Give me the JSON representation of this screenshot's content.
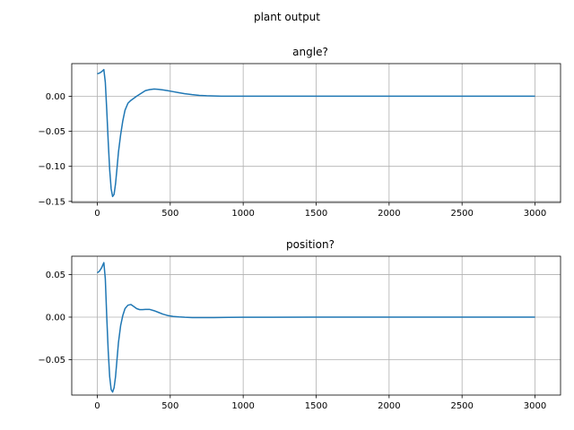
{
  "figure": {
    "suptitle": "plant output"
  },
  "chart_data": [
    {
      "type": "line",
      "title": "angle?",
      "xlabel": "",
      "ylabel": "",
      "xlim": [
        -175,
        3175
      ],
      "ylim": [
        -0.1515,
        0.0465
      ],
      "grid": true,
      "xticks": [
        0,
        500,
        1000,
        1500,
        2000,
        2500,
        3000
      ],
      "xtick_labels": [
        "0",
        "500",
        "1000",
        "1500",
        "2000",
        "2500",
        "3000"
      ],
      "yticks": [
        0.0,
        -0.05,
        -0.1,
        -0.15
      ],
      "ytick_labels": [
        "0.00",
        "−0.05",
        "−0.10",
        "−0.15"
      ],
      "series": [
        {
          "color": "#1f77b4",
          "x": [
            0,
            15,
            30,
            45,
            55,
            65,
            75,
            85,
            95,
            105,
            115,
            125,
            135,
            145,
            160,
            175,
            190,
            210,
            230,
            250,
            270,
            300,
            330,
            360,
            390,
            420,
            450,
            480,
            520,
            560,
            600,
            650,
            700,
            750,
            800,
            850,
            900,
            1000,
            1100,
            1200,
            1500,
            2000,
            2500,
            3000
          ],
          "y": [
            0.032,
            0.033,
            0.035,
            0.038,
            0.02,
            -0.02,
            -0.065,
            -0.105,
            -0.132,
            -0.143,
            -0.14,
            -0.125,
            -0.103,
            -0.08,
            -0.055,
            -0.035,
            -0.02,
            -0.01,
            -0.006,
            -0.003,
            0.0,
            0.004,
            0.008,
            0.0095,
            0.0102,
            0.0098,
            0.009,
            0.008,
            0.0065,
            0.005,
            0.0035,
            0.0022,
            0.0012,
            0.0006,
            0.0003,
            0.0001,
            0.0,
            0.0,
            0.0,
            0.0,
            0.0,
            0.0,
            0.0,
            0.0
          ]
        }
      ]
    },
    {
      "type": "line",
      "title": "position?",
      "xlabel": "",
      "ylabel": "",
      "xlim": [
        -175,
        3175
      ],
      "ylim": [
        -0.0915,
        0.0715
      ],
      "grid": true,
      "xticks": [
        0,
        500,
        1000,
        1500,
        2000,
        2500,
        3000
      ],
      "xtick_labels": [
        "0",
        "500",
        "1000",
        "1500",
        "2000",
        "2500",
        "3000"
      ],
      "yticks": [
        0.05,
        0.0,
        -0.05
      ],
      "ytick_labels": [
        "0.05",
        "0.00",
        "−0.05"
      ],
      "series": [
        {
          "color": "#1f77b4",
          "x": [
            0,
            15,
            30,
            45,
            55,
            65,
            75,
            85,
            95,
            105,
            115,
            125,
            135,
            145,
            160,
            175,
            190,
            210,
            230,
            250,
            270,
            290,
            310,
            330,
            360,
            390,
            420,
            450,
            480,
            520,
            560,
            600,
            650,
            700,
            750,
            800,
            900,
            1000,
            1200,
            1500,
            2000,
            2500,
            3000
          ],
          "y": [
            0.052,
            0.054,
            0.058,
            0.064,
            0.045,
            0.0,
            -0.04,
            -0.07,
            -0.085,
            -0.088,
            -0.083,
            -0.07,
            -0.05,
            -0.03,
            -0.01,
            0.002,
            0.01,
            0.014,
            0.0148,
            0.0125,
            0.01,
            0.0088,
            0.0088,
            0.009,
            0.009,
            0.0075,
            0.0055,
            0.0035,
            0.002,
            0.0008,
            0.0002,
            -0.0002,
            -0.0005,
            -0.0006,
            -0.0006,
            -0.0005,
            -0.0003,
            -0.0002,
            -0.0001,
            0.0,
            0.0,
            0.0,
            0.0
          ]
        }
      ]
    }
  ]
}
